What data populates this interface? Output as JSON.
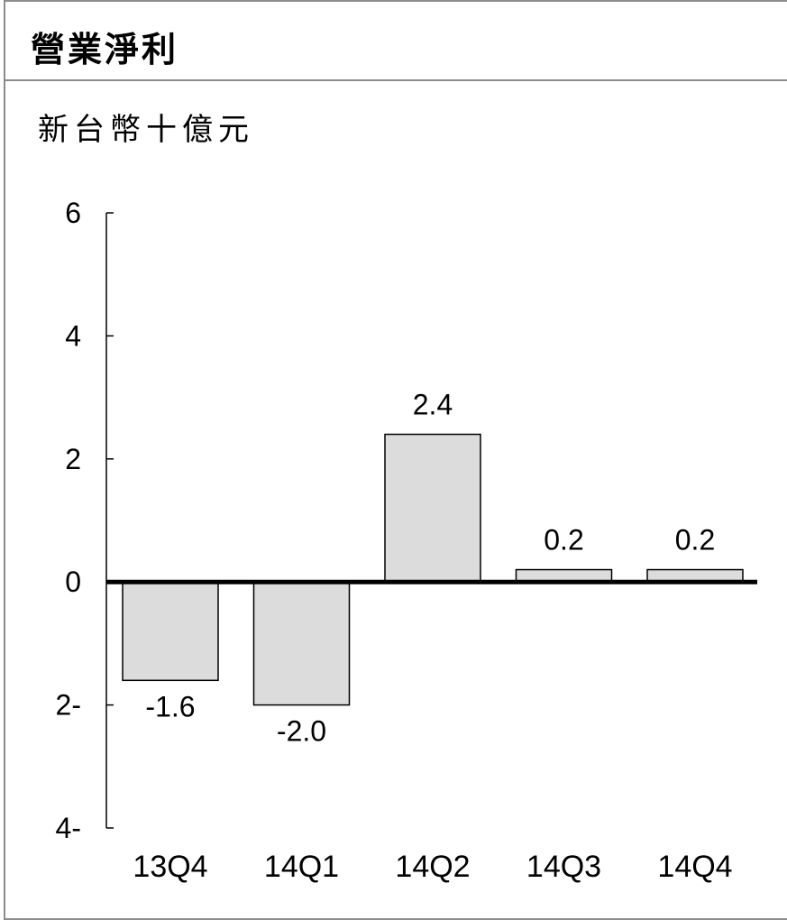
{
  "title": "營業淨利",
  "unit": "新台幣十億元",
  "colors": {
    "bar_fill": "#dcdcdc",
    "bar_stroke": "#000000",
    "axis": "#000000",
    "frame": "#8c8c8c"
  },
  "chart_data": {
    "type": "bar",
    "categories": [
      "13Q4",
      "14Q1",
      "14Q2",
      "14Q3",
      "14Q4"
    ],
    "values": [
      -1.6,
      -2.0,
      2.4,
      0.2,
      0.2
    ],
    "data_labels": [
      "-1.6",
      "-2.0",
      "2.4",
      "0.2",
      "0.2"
    ],
    "ylim": [
      -4,
      6
    ],
    "yticks": [
      6,
      4,
      2,
      0,
      -2,
      -4
    ],
    "ytick_labels": [
      "6",
      "4",
      "2",
      "0",
      "2-",
      "4-"
    ],
    "grid": false,
    "legend": "none"
  }
}
